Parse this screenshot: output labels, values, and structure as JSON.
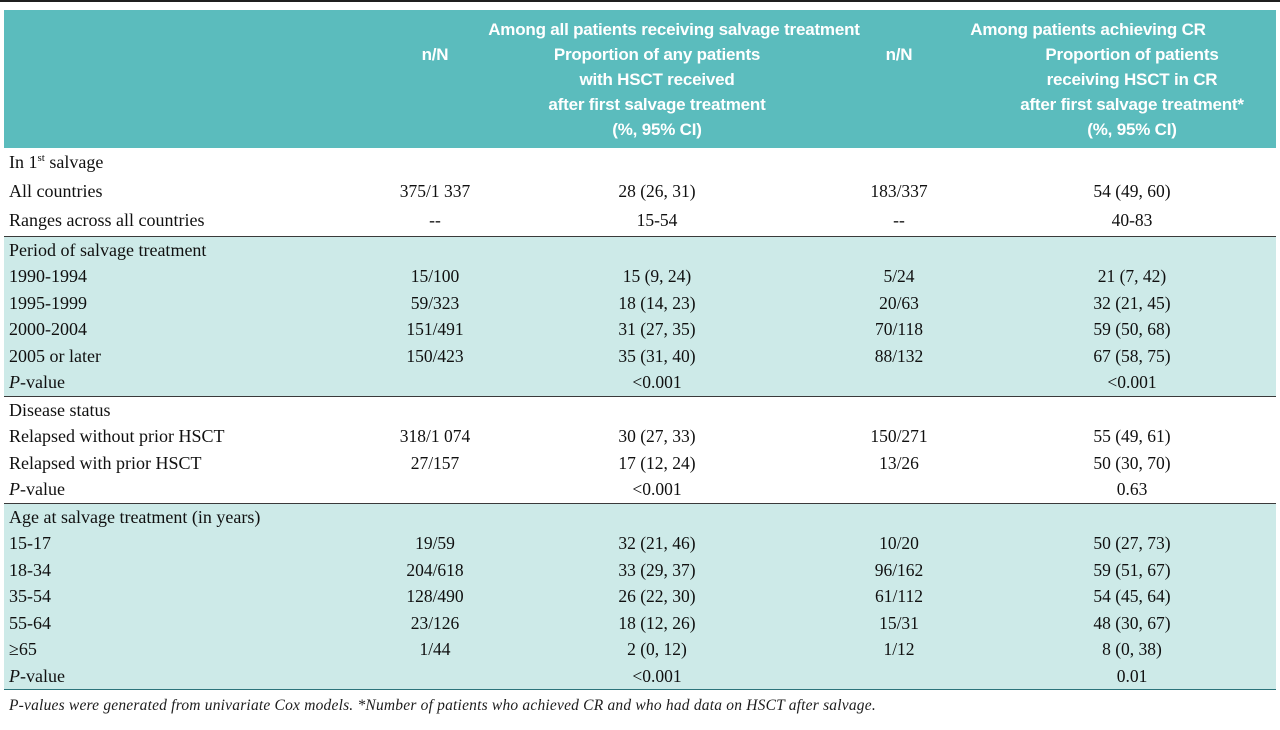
{
  "colors": {
    "header_bg": "#5bbcbd",
    "tint_bg": "#cdeae8",
    "rule_dark": "#3a3a3a",
    "rule_teal": "#2c747b",
    "header_text": "#ffffff",
    "body_text": "#101010"
  },
  "table": {
    "header": {
      "group1": "Among all patients receiving salvage treatment",
      "nN1": "n/N",
      "prop1_lines": [
        "Proportion of any patients",
        "with HSCT received",
        "after first salvage treatment",
        "(%, 95% CI)"
      ],
      "group2": "Among patients achieving CR",
      "nN2": "n/N",
      "prop2_lines": [
        "Proportion of patients",
        "receiving HSCT in CR",
        "after first salvage treatment*",
        "(%, 95% CI)"
      ]
    },
    "sections": [
      {
        "tinted": false,
        "rows": [
          {
            "label": [
              {
                "text": "In 1"
              },
              {
                "text": "st",
                "sup": true
              },
              {
                "text": " salvage"
              }
            ],
            "cells": [
              "",
              "",
              "",
              ""
            ]
          },
          {
            "label": "All countries",
            "cells": [
              "375/1 337",
              "28 (26, 31)",
              "183/337",
              "54 (49, 60)"
            ]
          },
          {
            "label": "Ranges across all countries",
            "cells": [
              "--",
              "15-54",
              "--",
              "40-83"
            ]
          }
        ]
      },
      {
        "tinted": true,
        "rows": [
          {
            "label": "Period of salvage treatment",
            "cells": [
              "",
              "",
              "",
              ""
            ]
          },
          {
            "label": "1990-1994",
            "cells": [
              "15/100",
              "15 (9, 24)",
              "5/24",
              "21 (7, 42)"
            ]
          },
          {
            "label": "1995-1999",
            "cells": [
              "59/323",
              "18 (14, 23)",
              "20/63",
              "32 (21, 45)"
            ]
          },
          {
            "label": "2000-2004",
            "cells": [
              "151/491",
              "31 (27, 35)",
              "70/118",
              "59 (50, 68)"
            ]
          },
          {
            "label": "2005 or later",
            "cells": [
              "150/423",
              "35 (31, 40)",
              "88/132",
              "67 (58, 75)"
            ]
          },
          {
            "label": [
              {
                "text": "P",
                "italic": true
              },
              {
                "text": "-value"
              }
            ],
            "cells": [
              "",
              "<0.001",
              "",
              "<0.001"
            ]
          }
        ]
      },
      {
        "tinted": false,
        "rows": [
          {
            "label": "Disease status",
            "cells": [
              "",
              "",
              "",
              ""
            ]
          },
          {
            "label": "Relapsed without prior HSCT",
            "cells": [
              "318/1 074",
              "30 (27, 33)",
              "150/271",
              "55 (49, 61)"
            ]
          },
          {
            "label": "Relapsed with prior HSCT",
            "cells": [
              "27/157",
              "17 (12, 24)",
              "13/26",
              "50 (30, 70)"
            ]
          },
          {
            "label": [
              {
                "text": "P",
                "italic": true
              },
              {
                "text": "-value"
              }
            ],
            "cells": [
              "",
              "<0.001",
              "",
              "0.63"
            ]
          }
        ]
      },
      {
        "tinted": true,
        "rows": [
          {
            "label": "Age at salvage treatment (in years)",
            "cells": [
              "",
              "",
              "",
              ""
            ]
          },
          {
            "label": "15-17",
            "cells": [
              "19/59",
              "32 (21, 46)",
              "10/20",
              "50 (27, 73)"
            ]
          },
          {
            "label": "18-34",
            "cells": [
              "204/618",
              "33 (29, 37)",
              "96/162",
              "59 (51, 67)"
            ]
          },
          {
            "label": "35-54",
            "cells": [
              "128/490",
              "26 (22, 30)",
              "61/112",
              "54 (45, 64)"
            ]
          },
          {
            "label": "55-64",
            "cells": [
              "23/126",
              "18 (12, 26)",
              "15/31",
              "48 (30, 67)"
            ]
          },
          {
            "label": "≥65",
            "cells": [
              "1/44",
              "2 (0, 12)",
              "1/12",
              "8 (0, 38)"
            ]
          },
          {
            "label": [
              {
                "text": "P",
                "italic": true
              },
              {
                "text": "-value"
              }
            ],
            "cells": [
              "",
              "<0.001",
              "",
              "0.01"
            ]
          }
        ]
      }
    ],
    "footnote": "P-values were generated from univariate Cox models. *Number of patients who achieved CR and who had data on HSCT after salvage."
  }
}
